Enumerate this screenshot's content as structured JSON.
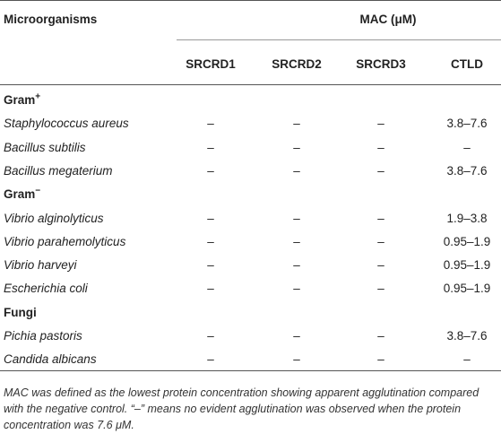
{
  "table": {
    "row_header": "Microorganisms",
    "group_header": "MAC (μM)",
    "columns": [
      "SRCRD1",
      "SRCRD2",
      "SRCRD3",
      "CTLD"
    ],
    "groups": [
      {
        "label": "Gram",
        "sup": "+",
        "rows": [
          {
            "name": "Staphylococcus aureus",
            "values": [
              "–",
              "–",
              "–",
              "3.8–7.6"
            ]
          },
          {
            "name": "Bacillus subtilis",
            "values": [
              "–",
              "–",
              "–",
              "–"
            ]
          },
          {
            "name": "Bacillus megaterium",
            "values": [
              "–",
              "–",
              "–",
              "3.8–7.6"
            ]
          }
        ]
      },
      {
        "label": "Gram",
        "sup": "−",
        "rows": [
          {
            "name": "Vibrio alginolyticus",
            "values": [
              "–",
              "–",
              "–",
              "1.9–3.8"
            ]
          },
          {
            "name": "Vibrio parahemolyticus",
            "values": [
              "–",
              "–",
              "–",
              "0.95–1.9"
            ]
          },
          {
            "name": "Vibrio harveyi",
            "values": [
              "–",
              "–",
              "–",
              "0.95–1.9"
            ]
          },
          {
            "name": "Escherichia coli",
            "values": [
              "–",
              "–",
              "–",
              "0.95–1.9"
            ]
          }
        ]
      },
      {
        "label": "Fungi",
        "rows": [
          {
            "name": "Pichia pastoris",
            "values": [
              "–",
              "–",
              "–",
              "3.8–7.6"
            ]
          },
          {
            "name": "Candida albicans",
            "values": [
              "–",
              "–",
              "–",
              "–"
            ]
          }
        ]
      }
    ]
  },
  "footnote": "MAC was defined as the lowest protein concentration showing apparent agglutination compared with the negative control. “–” means no evident agglutination was observed when the protein concentration was 7.6 μM."
}
